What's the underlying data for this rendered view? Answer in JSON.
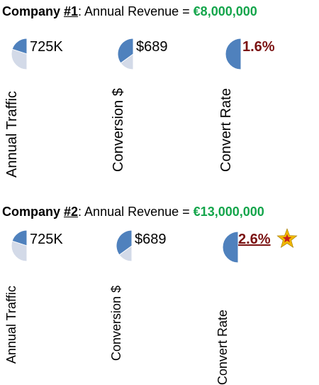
{
  "colors": {
    "pie_fill": "#4f81bd",
    "pie_background": "#d3dae8",
    "revenue_value": "#14a54b",
    "accent_rate": "#7b1212",
    "star_outer": "#f0b800",
    "star_inner": "#c81e1e"
  },
  "companies": [
    {
      "label": "Company ",
      "number": "#1",
      "revenue_label": ": Annual Revenue = ",
      "revenue_value": "€8,000,000",
      "metrics": [
        {
          "label": "Annual Traffic",
          "value": "725K",
          "share": 0.2
        },
        {
          "label": "Conversion $",
          "value": "$689",
          "share": 0.35
        },
        {
          "label": "Convert Rate",
          "value": "1.6%",
          "share": 0.5
        }
      ]
    },
    {
      "label": "Company ",
      "number": "#2",
      "revenue_label": ": Annual Revenue = ",
      "revenue_value": "€13,000,000",
      "metrics": [
        {
          "label": "Annual Traffic",
          "value": "725K",
          "share": 0.2
        },
        {
          "label": "Conversion $",
          "value": "$689",
          "share": 0.35
        },
        {
          "label": "Convert Rate",
          "value": "2.6%",
          "share": 0.5
        }
      ],
      "highlight_icon": "star-icon"
    }
  ]
}
